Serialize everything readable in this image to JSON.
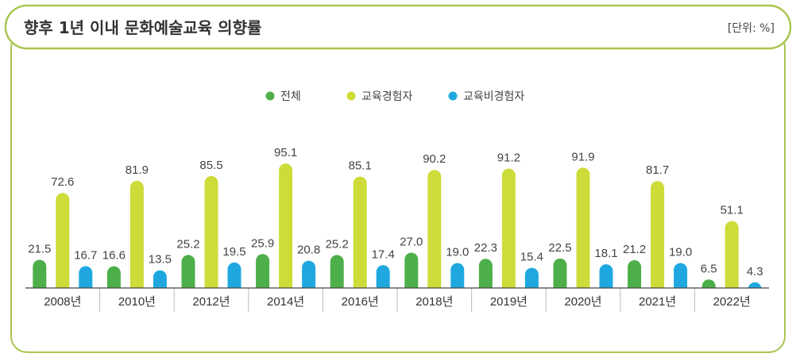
{
  "header": {
    "title": "향후 1년 이내 문화예술교육 의향률",
    "unit": "[단위: %]"
  },
  "colors": {
    "frame": "#a9c650",
    "axis": "#444444",
    "separator": "#bbbbbb"
  },
  "chart_data": {
    "type": "bar",
    "title": "향후 1년 이내 문화예술교육 의향률",
    "xlabel": "",
    "ylabel": "",
    "ylim": [
      0,
      100
    ],
    "grid": false,
    "legend": "top-center",
    "categories": [
      "2008년",
      "2010년",
      "2012년",
      "2014년",
      "2016년",
      "2018년",
      "2019년",
      "2020년",
      "2021년",
      "2022년"
    ],
    "series": [
      {
        "name": "전체",
        "color": "#4daf4a",
        "values": [
          21.5,
          16.6,
          25.2,
          25.9,
          25.2,
          27.0,
          22.3,
          22.5,
          21.2,
          6.5
        ]
      },
      {
        "name": "교육경험자",
        "color": "#cddc39",
        "values": [
          72.6,
          81.9,
          85.5,
          95.1,
          85.1,
          90.2,
          91.2,
          91.9,
          81.7,
          51.1
        ]
      },
      {
        "name": "교육비경험자",
        "color": "#1fa8e0",
        "values": [
          16.7,
          13.5,
          19.5,
          20.8,
          17.4,
          19.0,
          15.4,
          18.1,
          19.0,
          4.3
        ]
      }
    ]
  }
}
